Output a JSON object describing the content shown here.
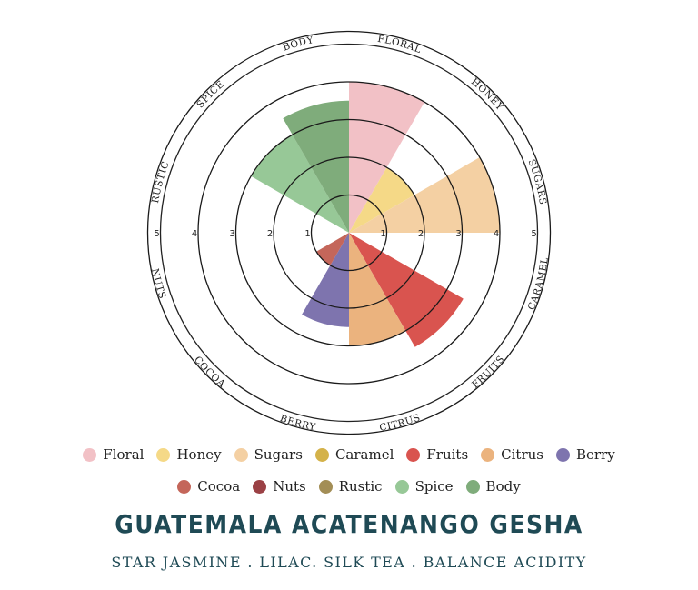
{
  "chart_data": {
    "type": "polar-area",
    "title": "GUATEMALA ACATENANGO GESHA",
    "subtitle": "STAR JASMINE . LILAC. SILK TEA . BALANCE ACIDITY",
    "rlim": [
      0,
      5
    ],
    "r_ticks": [
      "1",
      "2",
      "3",
      "4",
      "5"
    ],
    "grid": true,
    "legend_position": "bottom",
    "categories": [
      "Floral",
      "Honey",
      "Sugars",
      "Caramel",
      "Fruits",
      "Citrus",
      "Berry",
      "Cocoa",
      "Nuts",
      "Rustic",
      "Spice",
      "Body"
    ],
    "ring_labels": [
      "FLORAL",
      "HONEY",
      "SUGARS",
      "CARAMEL",
      "FRUITS",
      "CITRUS",
      "BERRY",
      "COCOA",
      "NUTS",
      "RUSTIC",
      "SPICE",
      "BODY"
    ],
    "values": [
      4,
      2,
      4,
      0,
      3.5,
      3,
      2.5,
      1,
      0,
      0,
      3,
      3.5
    ],
    "colors": [
      "#f2c1c6",
      "#f5d987",
      "#f4d0a3",
      "#d4b24a",
      "#d9544f",
      "#ebb37e",
      "#7e74ae",
      "#c4665a",
      "#9b4145",
      "#a38e56",
      "#97c897",
      "#7fac7b"
    ]
  }
}
